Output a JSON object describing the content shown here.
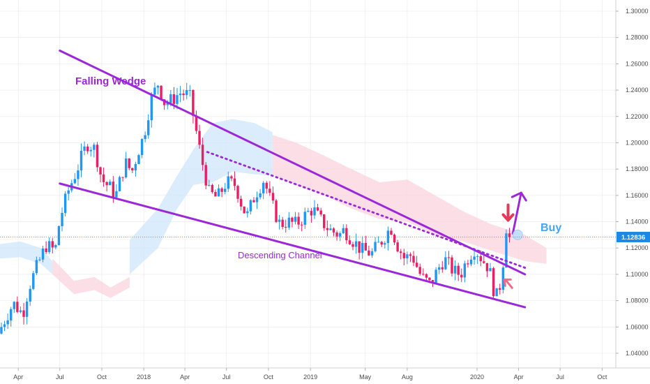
{
  "colors": {
    "bull": "#2196f3",
    "bear": "#e91e63",
    "pattern_line": "#9c27d9",
    "cloud_bull": "#cfe6fb",
    "cloud_bear": "#fbd3de",
    "current_price_bg": "#1e88e5",
    "buy_text": "#42a5f5",
    "red_arrow": "#e53958",
    "pink_arrow": "#f06a8a",
    "grid": "#e8e8e8"
  },
  "annotations": {
    "falling_wedge": "Falling Wedge",
    "descending_channel": "Descending Channel",
    "buy": "Buy"
  },
  "current_price_label": "1.12836",
  "chart_data": {
    "type": "candlestick",
    "title": "",
    "xlabel": "",
    "ylabel": "",
    "ylim": [
      1.02,
      1.31
    ],
    "x_range": [
      "2017-02-20",
      "2020-10-31"
    ],
    "y_ticks": [
      "1.04000",
      "1.06000",
      "1.08000",
      "1.10000",
      "1.12000",
      "1.14000",
      "1.16000",
      "1.18000",
      "1.20000",
      "1.22000",
      "1.24000",
      "1.26000",
      "1.28000",
      "1.30000"
    ],
    "x_ticks": [
      {
        "date": "2017-04-01",
        "label": "Apr"
      },
      {
        "date": "2017-07-01",
        "label": "Jul"
      },
      {
        "date": "2017-10-01",
        "label": "Oct"
      },
      {
        "date": "2018-01-01",
        "label": "2018"
      },
      {
        "date": "2018-04-01",
        "label": "Apr"
      },
      {
        "date": "2018-07-01",
        "label": "Jul"
      },
      {
        "date": "2018-10-01",
        "label": "Oct"
      },
      {
        "date": "2019-01-01",
        "label": "2019"
      },
      {
        "date": "2019-05-01",
        "label": "May"
      },
      {
        "date": "2019-08-01",
        "label": "Aug"
      },
      {
        "date": "2020-01-01",
        "label": "2020"
      },
      {
        "date": "2020-04-01",
        "label": "Apr"
      },
      {
        "date": "2020-07-01",
        "label": "Jul"
      },
      {
        "date": "2020-10-01",
        "label": "Oct"
      }
    ],
    "current_price": 1.12836,
    "price_path": [
      [
        "2017-02-20",
        1.055
      ],
      [
        "2017-03-10",
        1.068
      ],
      [
        "2017-03-25",
        1.078
      ],
      [
        "2017-04-15",
        1.07
      ],
      [
        "2017-04-28",
        1.09
      ],
      [
        "2017-05-15",
        1.105
      ],
      [
        "2017-06-05",
        1.122
      ],
      [
        "2017-06-25",
        1.118
      ],
      [
        "2017-07-05",
        1.142
      ],
      [
        "2017-07-25",
        1.165
      ],
      [
        "2017-08-10",
        1.178
      ],
      [
        "2017-08-25",
        1.192
      ],
      [
        "2017-09-05",
        1.2
      ],
      [
        "2017-09-20",
        1.195
      ],
      [
        "2017-10-05",
        1.172
      ],
      [
        "2017-10-25",
        1.165
      ],
      [
        "2017-11-05",
        1.16
      ],
      [
        "2017-11-25",
        1.185
      ],
      [
        "2017-12-10",
        1.178
      ],
      [
        "2017-12-25",
        1.195
      ],
      [
        "2018-01-05",
        1.205
      ],
      [
        "2018-01-20",
        1.232
      ],
      [
        "2018-02-05",
        1.245
      ],
      [
        "2018-02-20",
        1.23
      ],
      [
        "2018-03-05",
        1.232
      ],
      [
        "2018-03-25",
        1.238
      ],
      [
        "2018-04-15",
        1.236
      ],
      [
        "2018-04-28",
        1.212
      ],
      [
        "2018-05-10",
        1.19
      ],
      [
        "2018-05-28",
        1.162
      ],
      [
        "2018-06-15",
        1.158
      ],
      [
        "2018-07-05",
        1.17
      ],
      [
        "2018-07-25",
        1.168
      ],
      [
        "2018-08-10",
        1.15
      ],
      [
        "2018-08-20",
        1.145
      ],
      [
        "2018-09-05",
        1.16
      ],
      [
        "2018-09-25",
        1.172
      ],
      [
        "2018-10-10",
        1.155
      ],
      [
        "2018-10-30",
        1.138
      ],
      [
        "2018-11-15",
        1.14
      ],
      [
        "2018-12-05",
        1.138
      ],
      [
        "2018-12-25",
        1.145
      ],
      [
        "2019-01-10",
        1.15
      ],
      [
        "2019-01-25",
        1.142
      ],
      [
        "2019-02-15",
        1.134
      ],
      [
        "2019-03-10",
        1.13
      ],
      [
        "2019-03-20",
        1.134
      ],
      [
        "2019-04-10",
        1.125
      ],
      [
        "2019-04-28",
        1.118
      ],
      [
        "2019-05-20",
        1.116
      ],
      [
        "2019-06-15",
        1.128
      ],
      [
        "2019-06-30",
        1.136
      ],
      [
        "2019-07-15",
        1.122
      ],
      [
        "2019-07-30",
        1.112
      ],
      [
        "2019-08-15",
        1.115
      ],
      [
        "2019-09-05",
        1.098
      ],
      [
        "2019-09-25",
        1.092
      ],
      [
        "2019-10-10",
        1.103
      ],
      [
        "2019-10-25",
        1.112
      ],
      [
        "2019-11-15",
        1.102
      ],
      [
        "2019-11-30",
        1.1
      ],
      [
        "2019-12-15",
        1.112
      ],
      [
        "2019-12-31",
        1.12
      ],
      [
        "2020-01-15",
        1.112
      ],
      [
        "2020-01-31",
        1.105
      ],
      [
        "2020-02-12",
        1.086
      ],
      [
        "2020-02-20",
        1.082
      ],
      [
        "2020-03-01",
        1.106
      ],
      [
        "2020-03-09",
        1.136
      ],
      [
        "2020-03-12",
        1.129
      ]
    ],
    "cloud_bands": [
      {
        "color": "bull",
        "points": [
          [
            "2017-02-20",
            1.123,
            1.112
          ],
          [
            "2017-04-05",
            1.125,
            1.113
          ],
          [
            "2017-05-20",
            1.12,
            1.108
          ],
          [
            "2017-06-15",
            1.11,
            1.1
          ]
        ]
      },
      {
        "color": "bear",
        "points": [
          [
            "2017-06-15",
            1.112,
            1.1
          ],
          [
            "2017-08-01",
            1.095,
            1.085
          ],
          [
            "2017-09-15",
            1.098,
            1.088
          ],
          [
            "2017-10-20",
            1.09,
            1.082
          ],
          [
            "2017-12-01",
            1.098,
            1.09
          ]
        ]
      },
      {
        "color": "bull",
        "points": [
          [
            "2017-12-01",
            1.126,
            1.1
          ],
          [
            "2018-02-01",
            1.15,
            1.12
          ],
          [
            "2018-03-15",
            1.175,
            1.15
          ],
          [
            "2018-04-20",
            1.195,
            1.168
          ],
          [
            "2018-06-01",
            1.215,
            1.17
          ],
          [
            "2018-07-15",
            1.218,
            1.178
          ],
          [
            "2018-09-01",
            1.215,
            1.176
          ],
          [
            "2018-10-10",
            1.208,
            1.175
          ]
        ]
      },
      {
        "color": "bear",
        "points": [
          [
            "2018-10-10",
            1.206,
            1.176
          ],
          [
            "2018-12-01",
            1.2,
            1.168
          ],
          [
            "2019-02-01",
            1.19,
            1.16
          ],
          [
            "2019-04-01",
            1.18,
            1.15
          ],
          [
            "2019-06-01",
            1.17,
            1.142
          ],
          [
            "2019-08-01",
            1.172,
            1.14
          ],
          [
            "2019-10-01",
            1.16,
            1.13
          ],
          [
            "2019-12-01",
            1.148,
            1.125
          ],
          [
            "2020-02-01",
            1.138,
            1.118
          ],
          [
            "2020-04-15",
            1.13,
            1.11
          ],
          [
            "2020-06-01",
            1.12,
            1.108
          ]
        ]
      }
    ],
    "overlays": [
      {
        "kind": "wedge_upper",
        "from": [
          "2017-07-01",
          1.27
        ],
        "to": [
          "2020-04-15",
          1.1
        ]
      },
      {
        "kind": "wedge_lower",
        "from": [
          "2017-07-01",
          1.169
        ],
        "to": [
          "2020-04-15",
          1.075
        ]
      },
      {
        "kind": "dotted_trend",
        "from": [
          "2018-05-20",
          1.193
        ],
        "to": [
          "2020-04-15",
          1.105
        ]
      }
    ],
    "markers": [
      {
        "kind": "down_arrow",
        "date": "2020-03-09",
        "price": 1.14
      },
      {
        "kind": "up_arrow",
        "date": "2020-03-30",
        "price": 1.131,
        "to_price": 1.162
      },
      {
        "kind": "small_arrow",
        "date": "2020-03-01",
        "price": 1.095
      },
      {
        "kind": "buy_circle",
        "date": "2020-03-30",
        "price": 1.13
      }
    ]
  }
}
